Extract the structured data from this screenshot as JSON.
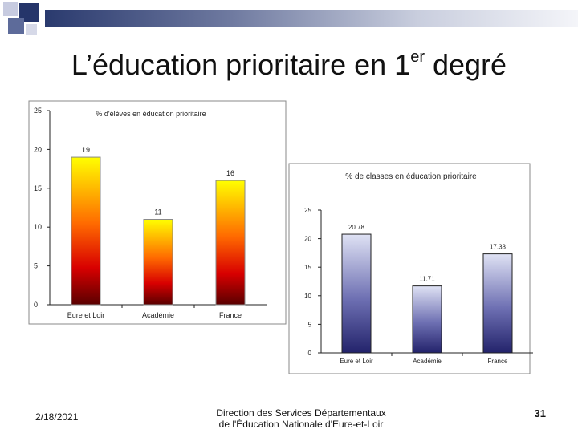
{
  "slide": {
    "title_main": "L’éducation prioritaire en 1",
    "title_sup": "er",
    "title_end": " degré",
    "date": "2/18/2021",
    "footer_line1": "Direction des Services Départementaux",
    "footer_line2": "de l'Éducation Nationale d'Eure-et-Loir",
    "page_number": "31"
  },
  "chart_data": [
    {
      "type": "bar",
      "title": "% d'élèves en éducation prioritaire",
      "categories": [
        "Eure et Loir",
        "Académie",
        "France"
      ],
      "values": [
        19,
        11,
        16
      ],
      "value_labels": [
        "19",
        "11",
        "16"
      ],
      "ylim": [
        0,
        25
      ],
      "yticks": [
        "0",
        "5",
        "10",
        "15",
        "20",
        "25"
      ],
      "grid": false,
      "bar_fill": "gradient yellow-red-maroon",
      "colors": {
        "top": "#ffff00",
        "mid": "#ff5500",
        "bottom": "#5a0000"
      }
    },
    {
      "type": "bar",
      "title": "% de classes en éducation prioritaire",
      "categories": [
        "Eure et Loir",
        "Académie",
        "France"
      ],
      "values": [
        20.78,
        11.71,
        17.33
      ],
      "value_labels": [
        "20.78",
        "11.71",
        "17.33"
      ],
      "ylim": [
        0,
        25
      ],
      "yticks": [
        "0",
        "5",
        "10",
        "15",
        "20",
        "25"
      ],
      "grid": false,
      "bar_fill": "gradient light blue to navy",
      "colors": {
        "top": "#d8dcf2",
        "bottom": "#23236b"
      }
    }
  ]
}
